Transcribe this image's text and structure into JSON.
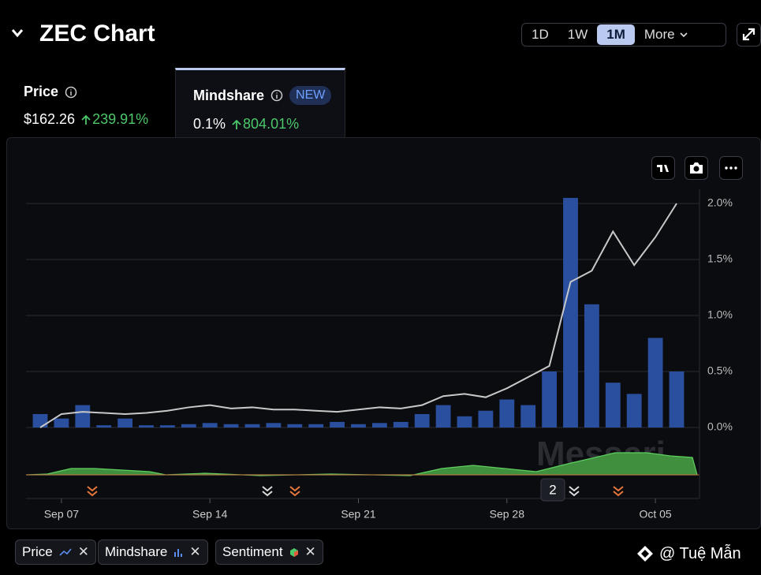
{
  "header": {
    "title": "ZEC Chart",
    "ranges": [
      "1D",
      "1W",
      "1M",
      "More"
    ]
  },
  "tabs": [
    {
      "label": "Price",
      "value": "$162.26",
      "change": "239.91%"
    },
    {
      "label": "Mindshare",
      "badge": "NEW",
      "value": "0.1%",
      "change": "804.01%"
    }
  ],
  "watermark": "Messari",
  "event_count": "2",
  "sentiment_label": "Sentiment",
  "credit": "@ Tuệ Mẫn",
  "chart_data": {
    "type": "bar",
    "categories": [
      null,
      "Sep 07",
      null,
      null,
      null,
      null,
      null,
      null,
      "Sep 14",
      null,
      null,
      null,
      null,
      null,
      null,
      "Sep 21",
      null,
      null,
      null,
      null,
      null,
      null,
      "Sep 28",
      null,
      null,
      null,
      null,
      null,
      null,
      "Oct 05",
      null
    ],
    "series": [
      {
        "name": "Mindshare",
        "type": "bar",
        "color": "#2a4f9e",
        "values": [
          0.12,
          0.08,
          0.2,
          0.02,
          0.08,
          0.02,
          0.02,
          0.03,
          0.04,
          0.03,
          0.03,
          0.04,
          0.03,
          0.03,
          0.05,
          0.03,
          0.04,
          0.05,
          0.12,
          0.2,
          0.1,
          0.15,
          0.25,
          0.2,
          0.5,
          2.05,
          1.1,
          0.4,
          0.3,
          0.8,
          0.5
        ]
      },
      {
        "name": "Price",
        "type": "line",
        "color": "#c8c8c8",
        "values": [
          0.0,
          0.12,
          0.14,
          0.13,
          0.12,
          0.13,
          0.15,
          0.18,
          0.2,
          0.17,
          0.18,
          0.16,
          0.16,
          0.15,
          0.14,
          0.16,
          0.18,
          0.17,
          0.2,
          0.28,
          0.3,
          0.27,
          0.35,
          0.45,
          0.55,
          1.3,
          1.4,
          1.75,
          1.45,
          1.7,
          2.0
        ]
      }
    ],
    "ylim": [
      0,
      2.0
    ],
    "yticks": [
      {
        "value": 0,
        "label": "0.0%"
      },
      {
        "value": 0.5,
        "label": "0.5%"
      },
      {
        "value": 1.0,
        "label": "1.0%"
      },
      {
        "value": 1.5,
        "label": "1.5%"
      },
      {
        "value": 2.0,
        "label": "2.0%"
      }
    ],
    "grid": true
  }
}
